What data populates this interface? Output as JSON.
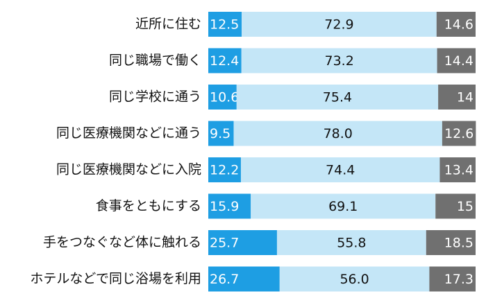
{
  "chart_data": {
    "type": "stacked-bar",
    "categories": [
      "近所に住む",
      "同じ職場で働く",
      "同じ学校に通う",
      "同じ医療機関などに通う",
      "同じ医療機関などに入院",
      "食事をともにする",
      "手をつなぐなど体に触れる",
      "ホテルなどで同じ浴場を利用"
    ],
    "series": [
      {
        "color": "#1e9ee3",
        "values": [
          12.5,
          12.4,
          10.6,
          9.5,
          12.2,
          15.9,
          25.7,
          26.7
        ]
      },
      {
        "color": "#c4e6f7",
        "values": [
          72.9,
          73.2,
          75.4,
          78.0,
          74.4,
          69.1,
          55.8,
          56.0
        ],
        "value_labels": [
          "72.9",
          "73.2",
          "75.4",
          "78.0",
          "74.4",
          "69.1",
          "55.8",
          "56.0"
        ]
      },
      {
        "color": "#707070",
        "values": [
          14.6,
          14.4,
          14.0,
          12.6,
          13.4,
          15.0,
          18.5,
          17.3
        ]
      }
    ],
    "xlim": [
      0,
      100
    ]
  }
}
